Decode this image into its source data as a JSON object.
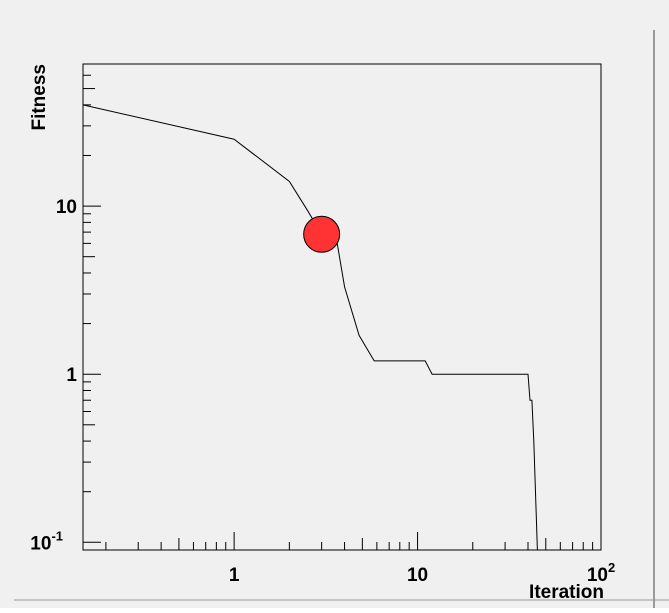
{
  "chart_data": {
    "type": "line",
    "title": "",
    "xlabel": "Iteration",
    "ylabel": "Fitness",
    "x_scale": "log",
    "y_scale": "log",
    "xlim": [
      0.15,
      100
    ],
    "ylim": [
      0.09,
      70
    ],
    "grid": false,
    "legend": "none",
    "x_ticks": [
      {
        "value": 1,
        "label": "1"
      },
      {
        "value": 10,
        "label": "10"
      },
      {
        "value": 100,
        "label": "10",
        "sup": "2"
      }
    ],
    "y_ticks": [
      {
        "value": 0.1,
        "label": "10",
        "sup": "-1"
      },
      {
        "value": 1,
        "label": "1"
      },
      {
        "value": 10,
        "label": "10"
      }
    ],
    "series": [
      {
        "x": [
          0.15,
          1.0,
          2.0,
          2.5,
          3.0,
          3.6,
          4.0,
          4.8,
          5.8,
          11.0,
          12.0,
          40.0,
          41.0,
          42.0,
          43.0,
          45.0
        ],
        "y": [
          40.0,
          25.0,
          14.0,
          9.5,
          6.8,
          6.5,
          3.3,
          1.7,
          1.2,
          1.2,
          1.0,
          1.0,
          0.7,
          0.7,
          0.4,
          0.085
        ],
        "color": "#000000"
      }
    ],
    "marker": {
      "x": 3.0,
      "y": 6.8,
      "color": "#ff3333"
    },
    "colors": {
      "background": "#f0f0f0",
      "frame": "#000000",
      "line": "#000000",
      "marker_fill": "#ff3333"
    }
  }
}
